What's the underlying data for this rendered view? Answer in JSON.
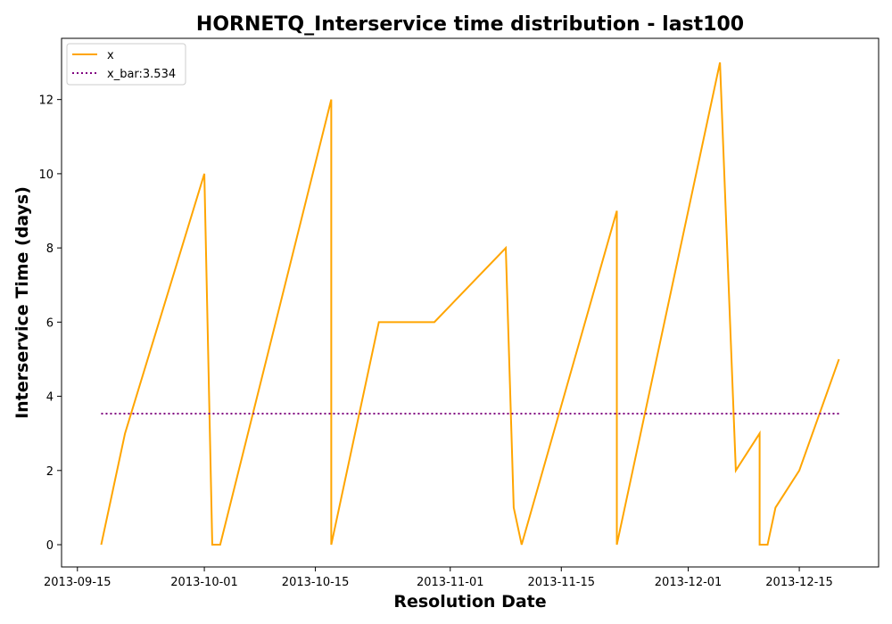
{
  "chart_data": {
    "type": "line",
    "title": "HORNETQ_Interservice time distribution - last100",
    "xlabel": "Resolution Date",
    "ylabel": "Interservice Time (days)",
    "xlim": [
      "2013-09-13",
      "2013-12-25"
    ],
    "ylim": [
      -0.6,
      13.65
    ],
    "xticks": [
      "2013-09-15",
      "2013-10-01",
      "2013-10-15",
      "2013-11-01",
      "2013-11-15",
      "2013-12-01",
      "2013-12-15"
    ],
    "yticks": [
      0,
      2,
      4,
      6,
      8,
      10,
      12
    ],
    "grid": false,
    "legend_position": "top-left",
    "series": [
      {
        "name": "x",
        "color": "#ffa500",
        "style": "solid",
        "x": [
          "2013-09-18",
          "2013-09-21",
          "2013-10-01",
          "2013-10-02",
          "2013-10-03",
          "2013-10-17",
          "2013-10-17",
          "2013-10-23",
          "2013-10-30",
          "2013-11-08",
          "2013-11-09",
          "2013-11-10",
          "2013-11-10",
          "2013-11-22",
          "2013-11-22",
          "2013-11-24",
          "2013-12-05",
          "2013-12-07",
          "2013-12-10",
          "2013-12-10",
          "2013-12-11",
          "2013-12-12",
          "2013-12-15",
          "2013-12-20"
        ],
        "y": [
          0,
          3,
          10,
          0,
          0,
          12,
          0,
          6,
          6,
          8,
          1,
          0,
          0,
          9,
          0,
          2,
          13,
          2,
          3,
          0,
          0,
          1,
          2,
          5
        ]
      },
      {
        "name": "x_bar:3.534",
        "color": "#800080",
        "style": "dotted",
        "x": [
          "2013-09-18",
          "2013-12-20"
        ],
        "y": [
          3.534,
          3.534
        ]
      }
    ]
  }
}
